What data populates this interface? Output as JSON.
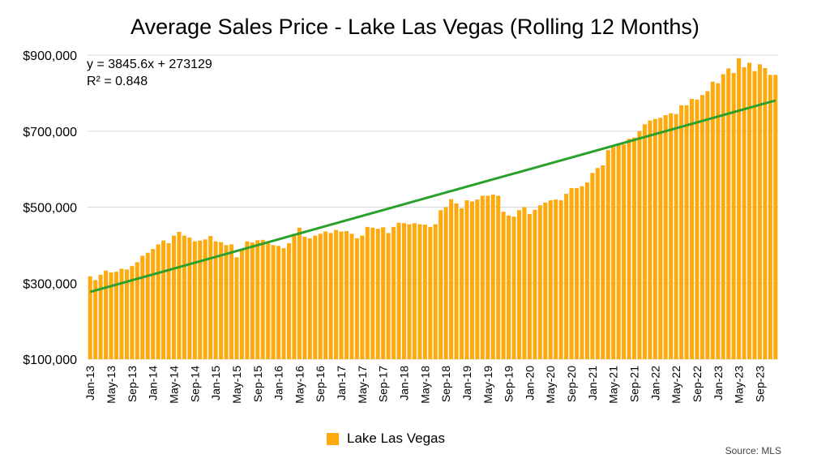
{
  "chart_data": {
    "type": "bar",
    "title": "Average Sales Price - Lake Las Vegas (Rolling 12 Months)",
    "xlabel": "",
    "ylabel": "",
    "ylim": [
      100000,
      900000
    ],
    "yticks": [
      "$100,000",
      "$300,000",
      "$500,000",
      "$700,000",
      "$900,000"
    ],
    "ytick_values": [
      100000,
      300000,
      500000,
      700000,
      900000
    ],
    "grid": true,
    "legend_position": "bottom",
    "categories": [
      "Jan-13",
      "Feb-13",
      "Mar-13",
      "Apr-13",
      "May-13",
      "Jun-13",
      "Jul-13",
      "Aug-13",
      "Sep-13",
      "Oct-13",
      "Nov-13",
      "Dec-13",
      "Jan-14",
      "Feb-14",
      "Mar-14",
      "Apr-14",
      "May-14",
      "Jun-14",
      "Jul-14",
      "Aug-14",
      "Sep-14",
      "Oct-14",
      "Nov-14",
      "Dec-14",
      "Jan-15",
      "Feb-15",
      "Mar-15",
      "Apr-15",
      "May-15",
      "Jun-15",
      "Jul-15",
      "Aug-15",
      "Sep-15",
      "Oct-15",
      "Nov-15",
      "Dec-15",
      "Jan-16",
      "Feb-16",
      "Mar-16",
      "Apr-16",
      "May-16",
      "Jun-16",
      "Jul-16",
      "Aug-16",
      "Sep-16",
      "Oct-16",
      "Nov-16",
      "Dec-16",
      "Jan-17",
      "Feb-17",
      "Mar-17",
      "Apr-17",
      "May-17",
      "Jun-17",
      "Jul-17",
      "Aug-17",
      "Sep-17",
      "Oct-17",
      "Nov-17",
      "Dec-17",
      "Jan-18",
      "Feb-18",
      "Mar-18",
      "Apr-18",
      "May-18",
      "Jun-18",
      "Jul-18",
      "Aug-18",
      "Sep-18",
      "Oct-18",
      "Nov-18",
      "Dec-18",
      "Jan-19",
      "Feb-19",
      "Mar-19",
      "Apr-19",
      "May-19",
      "Jun-19",
      "Jul-19",
      "Aug-19",
      "Sep-19",
      "Oct-19",
      "Nov-19",
      "Dec-19",
      "Jan-20",
      "Feb-20",
      "Mar-20",
      "Apr-20",
      "May-20",
      "Jun-20",
      "Jul-20",
      "Aug-20",
      "Sep-20",
      "Oct-20",
      "Nov-20",
      "Dec-20",
      "Jan-21",
      "Feb-21",
      "Mar-21",
      "Apr-21",
      "May-21",
      "Jun-21",
      "Jul-21",
      "Aug-21",
      "Sep-21",
      "Oct-21",
      "Nov-21",
      "Dec-21",
      "Jan-22",
      "Feb-22",
      "Mar-22",
      "Apr-22",
      "May-22",
      "Jun-22",
      "Jul-22",
      "Aug-22",
      "Sep-22",
      "Oct-22",
      "Nov-22",
      "Dec-22",
      "Jan-23",
      "Feb-23",
      "Mar-23",
      "Apr-23",
      "May-23",
      "Jun-23",
      "Jul-23",
      "Aug-23",
      "Sep-23",
      "Oct-23",
      "Nov-23",
      "Dec-23"
    ],
    "xtick_labels": [
      "Jan-13",
      "May-13",
      "Sep-13",
      "Jan-14",
      "May-14",
      "Sep-14",
      "Jan-15",
      "May-15",
      "Sep-15",
      "Jan-16",
      "May-16",
      "Sep-16",
      "Jan-17",
      "May-17",
      "Sep-17",
      "Jan-18",
      "May-18",
      "Sep-18",
      "Jan-19",
      "May-19",
      "Sep-19",
      "Jan-20",
      "May-20",
      "Sep-20",
      "Jan-21",
      "May-21",
      "Sep-21",
      "Jan-22",
      "May-22",
      "Sep-22",
      "Jan-23",
      "May-23",
      "Sep-23"
    ],
    "series": [
      {
        "name": "Lake Las Vegas",
        "color": "#FDAA0F",
        "values": [
          318000,
          308000,
          322000,
          333000,
          328000,
          330000,
          338000,
          336000,
          345000,
          355000,
          372000,
          380000,
          390000,
          402000,
          412000,
          405000,
          425000,
          435000,
          425000,
          420000,
          410000,
          412000,
          415000,
          424000,
          410000,
          408000,
          400000,
          402000,
          368000,
          390000,
          410000,
          407000,
          413000,
          414000,
          405000,
          400000,
          398000,
          392000,
          405000,
          430000,
          446000,
          422000,
          418000,
          425000,
          430000,
          436000,
          432000,
          440000,
          436000,
          437000,
          430000,
          418000,
          425000,
          448000,
          446000,
          443000,
          447000,
          432000,
          448000,
          459000,
          458000,
          455000,
          458000,
          455000,
          454000,
          448000,
          455000,
          492000,
          500000,
          521000,
          510000,
          497000,
          518000,
          515000,
          520000,
          530000,
          530000,
          533000,
          530000,
          488000,
          478000,
          475000,
          492000,
          500000,
          482000,
          493000,
          505000,
          512000,
          518000,
          520000,
          518000,
          535000,
          550000,
          550000,
          555000,
          565000,
          590000,
          603000,
          610000,
          650000,
          658000,
          668000,
          665000,
          680000,
          683000,
          700000,
          718000,
          728000,
          732000,
          735000,
          742000,
          747000,
          745000,
          768000,
          768000,
          785000,
          783000,
          795000,
          805000,
          830000,
          826000,
          850000,
          865000,
          853000,
          892000,
          868000,
          880000,
          858000,
          876000,
          866000,
          848000,
          848000
        ]
      }
    ],
    "trendline": {
      "color": "#2CA02C",
      "slope": 3845.6,
      "intercept": 273129,
      "equation_label": "y = 3845.6x + 273129",
      "r2_label": "R² = 0.848"
    },
    "source_label": "Source: MLS"
  }
}
